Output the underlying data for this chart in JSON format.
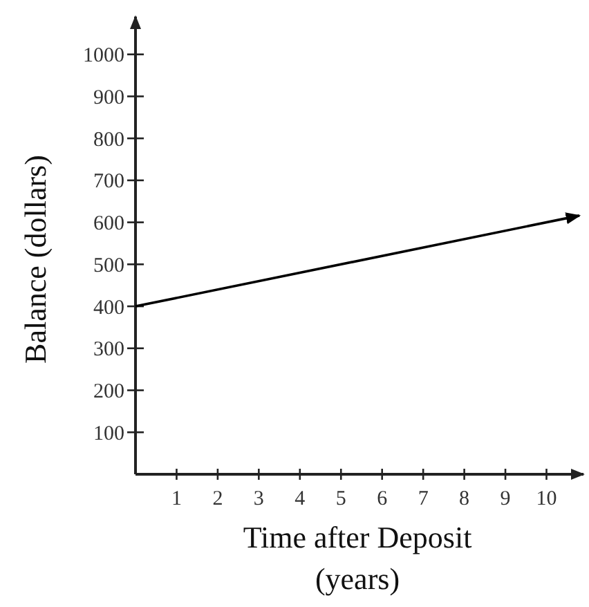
{
  "chart_data": {
    "type": "line",
    "xlabel": "Time after Deposit\n(years)",
    "ylabel": "Balance (dollars)",
    "x": [
      0,
      10.8
    ],
    "series": [
      {
        "color": "#000000",
        "values": [
          400,
          616
        ]
      }
    ],
    "xlim": [
      0,
      10.9
    ],
    "ylim": [
      0,
      1090
    ],
    "xticks": [
      1,
      2,
      3,
      4,
      5,
      6,
      7,
      8,
      9,
      10
    ],
    "yticks": [
      100,
      200,
      300,
      400,
      500,
      600,
      700,
      800,
      900,
      1000
    ],
    "grid": false,
    "marker": "none",
    "line_style": "solid"
  }
}
